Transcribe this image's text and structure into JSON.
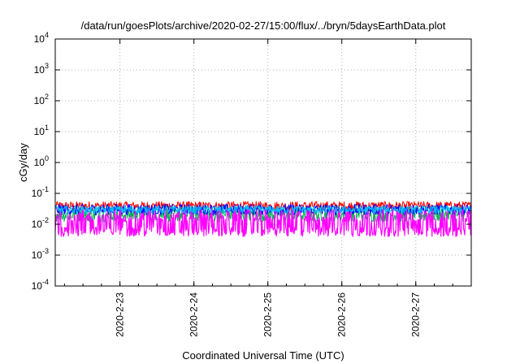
{
  "chart_data": {
    "type": "line",
    "title": "/data/run/goesPlots/archive/2020-02-27/15:00/flux/../bryn/5daysEarthData.plot",
    "xlabel": "Coordinated Universal Time (UTC)",
    "ylabel": "cGy/day",
    "yscale": "log",
    "ylim": [
      0.0001,
      10000
    ],
    "y_ticks": [
      {
        "value": 0.0001,
        "base": "10",
        "exp": "-4"
      },
      {
        "value": 0.001,
        "base": "10",
        "exp": "-3"
      },
      {
        "value": 0.01,
        "base": "10",
        "exp": "-2"
      },
      {
        "value": 0.1,
        "base": "10",
        "exp": "-1"
      },
      {
        "value": 1,
        "base": "10",
        "exp": "0"
      },
      {
        "value": 10,
        "base": "10",
        "exp": "1"
      },
      {
        "value": 100,
        "base": "10",
        "exp": "2"
      },
      {
        "value": 1000,
        "base": "10",
        "exp": "3"
      },
      {
        "value": 10000,
        "base": "10",
        "exp": "4"
      }
    ],
    "xlim": [
      "2020-02-22 03:00",
      "2020-02-27 18:00"
    ],
    "x_ticks": [
      "2020-2-23",
      "2020-2-24",
      "2020-2-25",
      "2020-2-26",
      "2020-2-27"
    ],
    "grid": true,
    "series": [
      {
        "color": "#ff0000",
        "band": [
          0.028,
          0.055
        ]
      },
      {
        "color": "#00b050",
        "band": [
          0.012,
          0.035
        ]
      },
      {
        "color": "#0000ff",
        "band": [
          0.02,
          0.045
        ]
      },
      {
        "color": "#00c0ff",
        "band": [
          0.022,
          0.04
        ]
      },
      {
        "color": "#ff00ff",
        "band": [
          0.004,
          0.03
        ]
      }
    ]
  }
}
